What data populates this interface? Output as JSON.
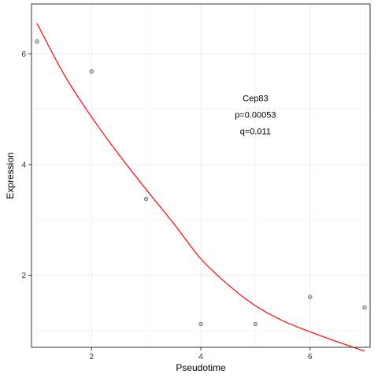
{
  "chart_data": {
    "type": "scatter",
    "xlabel": "Pseudotime",
    "ylabel": "Expression",
    "xlim": [
      0.9,
      7.1
    ],
    "ylim": [
      0.7,
      6.9
    ],
    "x_ticks": [
      2,
      4,
      6
    ],
    "y_ticks": [
      2,
      4,
      6
    ],
    "x_minor_ticks": [
      1,
      3,
      5,
      7
    ],
    "y_minor_ticks": [
      1,
      3,
      5
    ],
    "grid": true,
    "points": {
      "x": [
        1,
        2,
        3,
        4,
        5,
        6,
        7
      ],
      "y": [
        6.22,
        5.68,
        3.38,
        1.12,
        1.12,
        1.61,
        1.42
      ]
    },
    "fit_line": {
      "x": [
        1,
        1.5,
        2,
        2.5,
        3,
        3.5,
        4,
        4.5,
        5,
        5.5,
        6,
        6.5,
        7
      ],
      "y": [
        6.55,
        5.62,
        4.86,
        4.18,
        3.55,
        2.94,
        2.3,
        1.83,
        1.45,
        1.18,
        0.98,
        0.8,
        0.63
      ],
      "color": "#ff0000"
    },
    "annotations": [
      "Cep83",
      "p=0.00053",
      "q=0.011"
    ],
    "annotation_anchor": {
      "x": 5,
      "y": 5.2
    },
    "colors": {
      "point_fill": "#c8c8c8",
      "point_stroke": "#555555",
      "panel_border": "#333333",
      "grid": "#ebebeb"
    }
  }
}
